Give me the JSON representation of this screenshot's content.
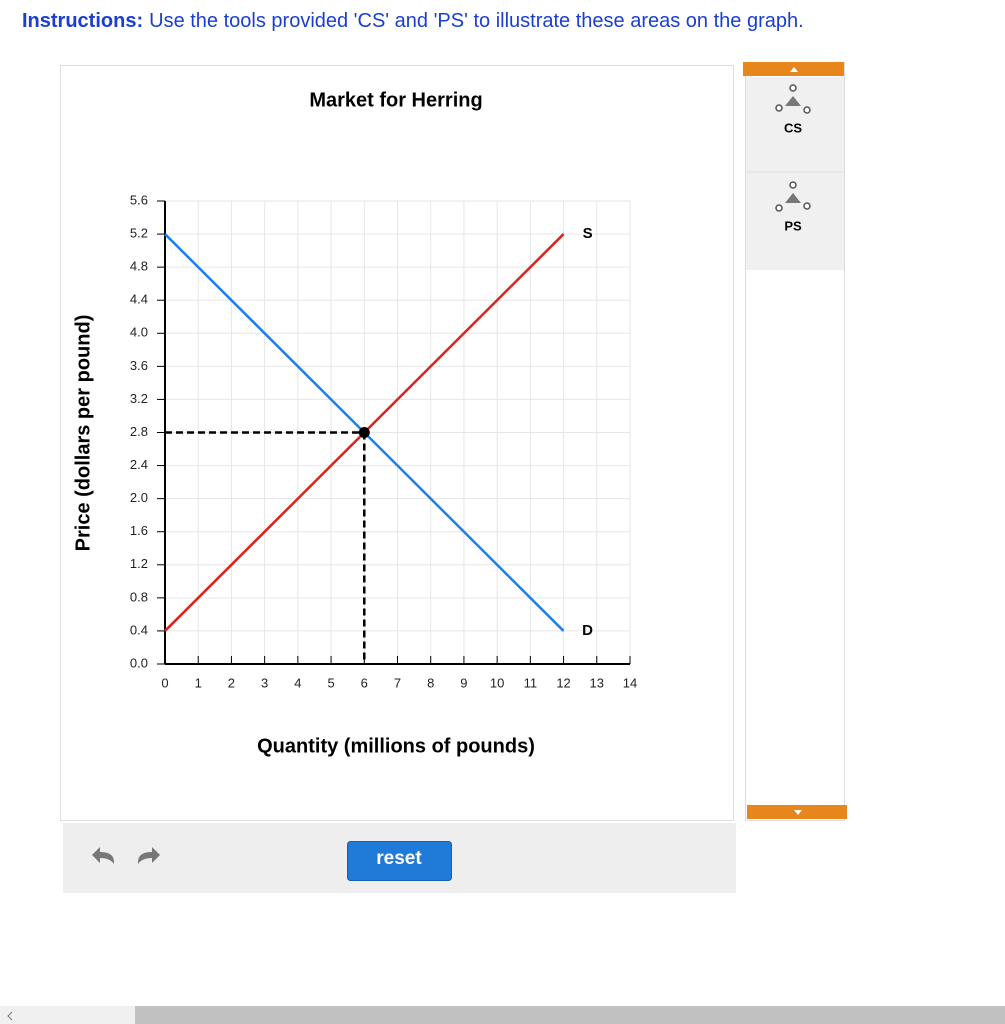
{
  "instructions": {
    "label": "Instructions:",
    "text": "Use the tools provided 'CS' and 'PS' to illustrate these areas on the graph."
  },
  "chart_data": {
    "type": "line",
    "title": "Market for Herring",
    "x_label": "Quantity (millions of pounds)",
    "y_label": "Price (dollars per pound)",
    "x": [
      0,
      12
    ],
    "series": [
      {
        "name": "D",
        "color": "#1a7ff0",
        "values": [
          5.2,
          0.4
        ]
      },
      {
        "name": "S",
        "color": "#e0201a",
        "values": [
          0.4,
          5.2
        ]
      }
    ],
    "equilibrium": {
      "x": 6,
      "y": 2.8
    },
    "xlim": [
      0,
      14
    ],
    "ylim": [
      0,
      5.6
    ],
    "xticks": [
      0,
      1,
      2,
      3,
      4,
      5,
      6,
      7,
      8,
      9,
      10,
      11,
      12,
      13,
      14
    ],
    "yticks": [
      {
        "value": 0,
        "label": "0.0"
      },
      0.4,
      0.8,
      1.2,
      1.6,
      {
        "value": 2,
        "label": "2.0"
      },
      2.4,
      2.8,
      3.2,
      3.6,
      {
        "value": 4,
        "label": "4.0"
      },
      4.4,
      4.8,
      5.2,
      5.6
    ],
    "grid": true
  },
  "tools": [
    {
      "label": "CS"
    },
    {
      "label": "PS"
    }
  ],
  "buttons": {
    "reset": "reset"
  }
}
